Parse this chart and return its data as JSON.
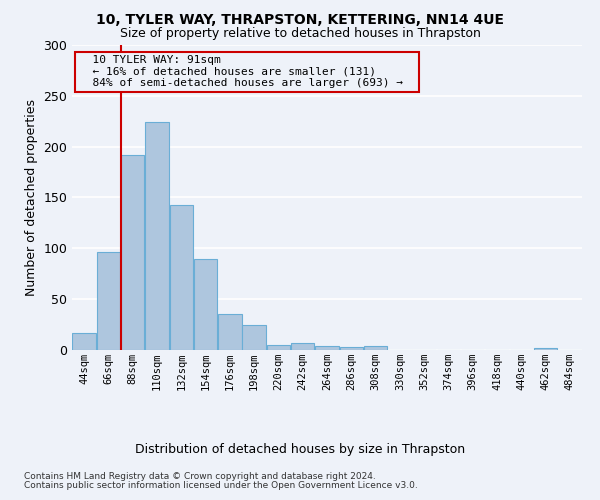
{
  "title1": "10, TYLER WAY, THRAPSTON, KETTERING, NN14 4UE",
  "title2": "Size of property relative to detached houses in Thrapston",
  "xlabel": "Distribution of detached houses by size in Thrapston",
  "ylabel": "Number of detached properties",
  "property_size": 91,
  "annotation_line1": "10 TYLER WAY: 91sqm",
  "annotation_line2": "← 16% of detached houses are smaller (131)",
  "annotation_line3": "84% of semi-detached houses are larger (693) →",
  "footer1": "Contains HM Land Registry data © Crown copyright and database right 2024.",
  "footer2": "Contains public sector information licensed under the Open Government Licence v3.0.",
  "bar_edges": [
    44,
    66,
    88,
    110,
    132,
    154,
    176,
    198,
    220,
    242,
    264,
    286,
    308,
    330,
    352,
    374,
    396,
    418,
    440,
    462,
    484,
    506
  ],
  "bar_heights": [
    17,
    96,
    192,
    224,
    143,
    90,
    35,
    25,
    5,
    7,
    4,
    3,
    4,
    0,
    0,
    0,
    0,
    0,
    0,
    2,
    0
  ],
  "bar_color": "#aec6de",
  "bar_edgecolor": "#6aaed6",
  "vline_x": 88,
  "vline_color": "#cc0000",
  "annotation_box_color": "#cc0000",
  "background_color": "#eef2f9",
  "grid_color": "#ffffff",
  "yticks": [
    0,
    50,
    100,
    150,
    200,
    250,
    300
  ],
  "ylim": [
    0,
    300
  ],
  "xlim": [
    44,
    506
  ]
}
